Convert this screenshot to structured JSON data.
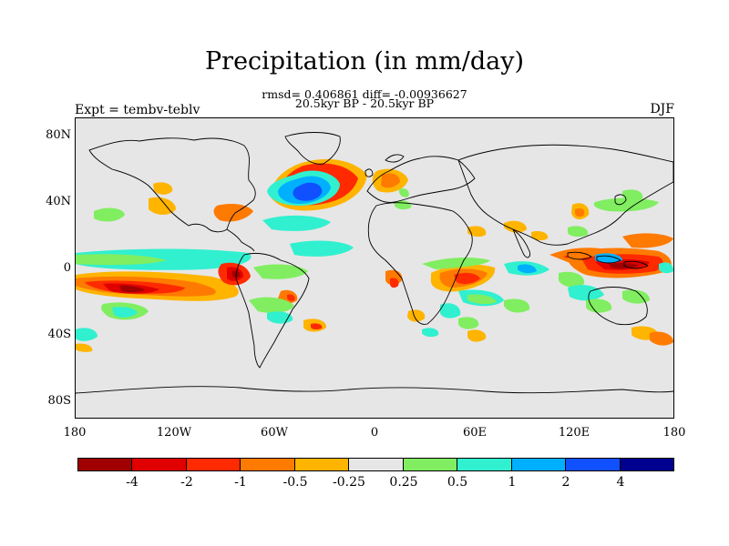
{
  "title": "Precipitation (in mm/day)",
  "stats": "rmsd= 0.406861 diff= -0.00936627",
  "period": "20.5kyr BP - 20.5kyr BP",
  "expt": "Expt = tembv-teblv",
  "season": "DJF",
  "lat_labels": [
    "80N",
    "40N",
    "0",
    "40S",
    "80S"
  ],
  "lon_labels": [
    "180",
    "120W",
    "60W",
    "0",
    "60E",
    "120E",
    "180"
  ],
  "colorbar": {
    "colors": [
      "#a00000",
      "#e00000",
      "#ff2a00",
      "#ff7a00",
      "#ffb400",
      "#e6e6e6",
      "#80ee60",
      "#30f0d0",
      "#00b0ff",
      "#1050ff",
      "#000090"
    ],
    "labels": [
      "-4",
      "-2",
      "-1",
      "-0.5",
      "-0.25",
      "0.25",
      "0.5",
      "1",
      "2",
      "4"
    ]
  },
  "map": {
    "background_color": "#e6e6e6",
    "projection": "cylindrical equidistant",
    "lon_range": [
      -180,
      180
    ],
    "lat_range": [
      -90,
      90
    ],
    "coastline_color": "#000000"
  }
}
